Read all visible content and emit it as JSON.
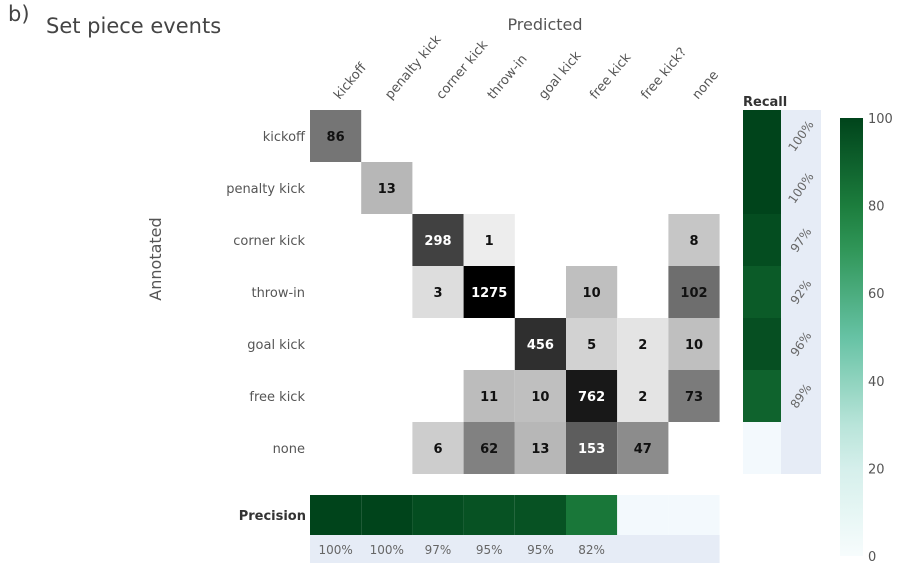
{
  "panel_label": "b)",
  "chart_data": {
    "type": "heatmap",
    "title": "Set piece events",
    "xlabel": "Predicted",
    "ylabel": "Annotated",
    "x_categories": [
      "kickoff",
      "penalty kick",
      "corner kick",
      "throw-in",
      "goal kick",
      "free kick",
      "free kick?",
      "none"
    ],
    "y_categories": [
      "kickoff",
      "penalty kick",
      "corner kick",
      "throw-in",
      "goal kick",
      "free kick",
      "none"
    ],
    "matrix": [
      [
        86,
        null,
        null,
        null,
        null,
        null,
        null,
        null
      ],
      [
        null,
        13,
        null,
        null,
        null,
        null,
        null,
        null
      ],
      [
        null,
        null,
        298,
        1,
        null,
        null,
        null,
        8
      ],
      [
        null,
        null,
        3,
        1275,
        null,
        10,
        null,
        102
      ],
      [
        null,
        null,
        null,
        null,
        456,
        5,
        2,
        10
      ],
      [
        null,
        null,
        null,
        11,
        10,
        762,
        2,
        73
      ],
      [
        null,
        null,
        6,
        62,
        13,
        153,
        47,
        null
      ]
    ],
    "recall": {
      "label": "Recall",
      "values": [
        100,
        100,
        97,
        92,
        96,
        89,
        null
      ],
      "labels": [
        "100%",
        "100%",
        "97%",
        "92%",
        "96%",
        "89%",
        ""
      ]
    },
    "precision": {
      "label": "Precision",
      "values": [
        100,
        100,
        97,
        95,
        95,
        82,
        null,
        null
      ],
      "labels": [
        "100%",
        "100%",
        "97%",
        "95%",
        "95%",
        "82%",
        "",
        ""
      ]
    },
    "colorbar": {
      "ticks": [
        0,
        20,
        40,
        60,
        80,
        100
      ],
      "range": [
        0,
        100
      ],
      "colormap": "BuGn"
    }
  }
}
